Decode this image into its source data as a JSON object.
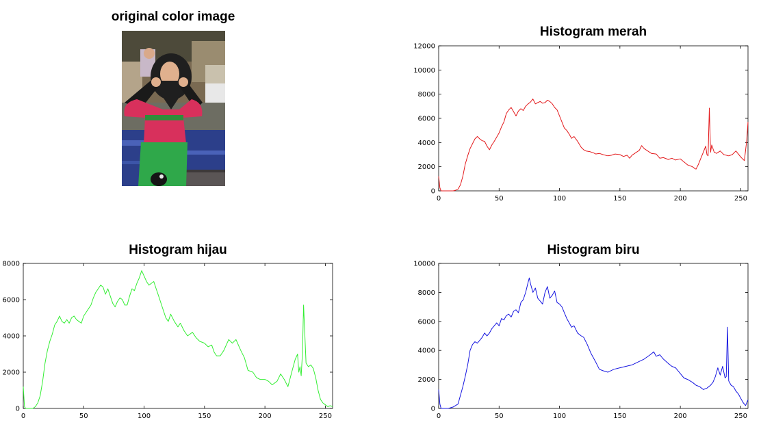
{
  "image_panel": {
    "title": "original color image"
  },
  "chart_data": [
    {
      "type": "line",
      "title": "Histogram merah",
      "xlabel": "",
      "ylabel": "",
      "xlim": [
        0,
        256
      ],
      "ylim": [
        0,
        12000
      ],
      "xticks": [
        0,
        50,
        100,
        150,
        200,
        250
      ],
      "yticks": [
        0,
        2000,
        4000,
        6000,
        8000,
        10000,
        12000
      ],
      "color": "#e31a1c",
      "grid": false,
      "series": [
        {
          "x": [
            0,
            1,
            2,
            4,
            8,
            12,
            14,
            16,
            18,
            20,
            22,
            24,
            26,
            28,
            30,
            32,
            34,
            36,
            38,
            40,
            42,
            44,
            46,
            48,
            50,
            52,
            54,
            56,
            58,
            60,
            62,
            64,
            66,
            68,
            70,
            72,
            74,
            76,
            78,
            80,
            82,
            84,
            86,
            88,
            90,
            92,
            94,
            96,
            98,
            100,
            102,
            104,
            106,
            108,
            110,
            112,
            115,
            118,
            120,
            122,
            125,
            128,
            130,
            133,
            136,
            140,
            143,
            146,
            150,
            153,
            156,
            158,
            160,
            163,
            166,
            168,
            170,
            173,
            176,
            180,
            183,
            186,
            190,
            193,
            196,
            200,
            203,
            206,
            210,
            212,
            213,
            215,
            217,
            219,
            221,
            222,
            223,
            224,
            225,
            226,
            228,
            230,
            233,
            236,
            240,
            243,
            246,
            250,
            253,
            255,
            256
          ],
          "y": [
            1200,
            250,
            0,
            0,
            0,
            0,
            50,
            150,
            500,
            1200,
            2200,
            2900,
            3500,
            3900,
            4300,
            4500,
            4300,
            4150,
            4100,
            3700,
            3400,
            3800,
            4100,
            4450,
            4800,
            5300,
            5700,
            6400,
            6700,
            6900,
            6550,
            6200,
            6600,
            6800,
            6650,
            7000,
            7200,
            7350,
            7600,
            7200,
            7300,
            7400,
            7250,
            7300,
            7500,
            7400,
            7200,
            6900,
            6700,
            6200,
            5700,
            5200,
            5000,
            4700,
            4350,
            4500,
            4100,
            3600,
            3400,
            3300,
            3250,
            3150,
            3050,
            3100,
            3000,
            2900,
            2950,
            3050,
            3000,
            2850,
            2950,
            2700,
            2950,
            3150,
            3350,
            3750,
            3500,
            3300,
            3100,
            3050,
            2700,
            2750,
            2600,
            2700,
            2550,
            2650,
            2400,
            2150,
            2000,
            1850,
            1800,
            2200,
            2700,
            3200,
            3700,
            3000,
            2900,
            6850,
            3200,
            3800,
            3200,
            3100,
            3300,
            3000,
            2900,
            3000,
            3300,
            2800,
            2500,
            4200,
            5700
          ]
        }
      ]
    },
    {
      "type": "line",
      "title": "Histogram hijau",
      "xlabel": "",
      "ylabel": "",
      "xlim": [
        0,
        256
      ],
      "ylim": [
        0,
        8000
      ],
      "xticks": [
        0,
        50,
        100,
        150,
        200,
        250
      ],
      "yticks": [
        0,
        2000,
        4000,
        6000,
        8000
      ],
      "color": "#33ee33",
      "grid": false,
      "series": [
        {
          "x": [
            0,
            1,
            2,
            4,
            8,
            10,
            12,
            14,
            16,
            18,
            20,
            22,
            24,
            26,
            28,
            30,
            32,
            34,
            36,
            38,
            40,
            42,
            44,
            46,
            48,
            50,
            52,
            54,
            56,
            58,
            60,
            62,
            64,
            66,
            68,
            70,
            72,
            74,
            76,
            78,
            80,
            82,
            84,
            86,
            88,
            90,
            92,
            94,
            96,
            98,
            100,
            102,
            104,
            106,
            108,
            110,
            112,
            115,
            118,
            120,
            122,
            125,
            128,
            130,
            133,
            136,
            140,
            143,
            146,
            150,
            153,
            156,
            158,
            160,
            163,
            166,
            168,
            170,
            173,
            176,
            180,
            183,
            186,
            190,
            193,
            196,
            200,
            203,
            206,
            210,
            213,
            216,
            219,
            221,
            223,
            225,
            227,
            228,
            229,
            230,
            231,
            232,
            234,
            236,
            238,
            240,
            242,
            244,
            246,
            248,
            250,
            252,
            254,
            256
          ],
          "y": [
            1200,
            100,
            0,
            0,
            0,
            100,
            300,
            700,
            1500,
            2500,
            3200,
            3700,
            4100,
            4600,
            4800,
            5100,
            4800,
            4700,
            4900,
            4700,
            5000,
            5100,
            4900,
            4800,
            4700,
            5100,
            5300,
            5500,
            5700,
            6100,
            6400,
            6600,
            6800,
            6700,
            6300,
            6600,
            6200,
            5800,
            5600,
            5900,
            6100,
            6000,
            5700,
            5700,
            6200,
            6600,
            6500,
            6900,
            7200,
            7600,
            7300,
            7000,
            6800,
            6900,
            7000,
            6600,
            6200,
            5600,
            5000,
            4800,
            5200,
            4800,
            4500,
            4700,
            4300,
            4000,
            4200,
            3900,
            3700,
            3600,
            3400,
            3500,
            3100,
            2900,
            2900,
            3200,
            3500,
            3800,
            3600,
            3800,
            3200,
            2800,
            2100,
            2000,
            1700,
            1600,
            1600,
            1500,
            1300,
            1500,
            1900,
            1600,
            1200,
            1700,
            2200,
            2700,
            3000,
            2000,
            2300,
            1800,
            3000,
            5700,
            2500,
            2300,
            2400,
            2200,
            1700,
            1000,
            500,
            300,
            200,
            100,
            150,
            100
          ]
        }
      ]
    },
    {
      "type": "line",
      "title": "Histogram biru",
      "xlabel": "",
      "ylabel": "",
      "xlim": [
        0,
        256
      ],
      "ylim": [
        0,
        10000
      ],
      "xticks": [
        0,
        50,
        100,
        150,
        200,
        250
      ],
      "yticks": [
        0,
        2000,
        4000,
        6000,
        8000,
        10000
      ],
      "color": "#1515e0",
      "grid": false,
      "series": [
        {
          "x": [
            0,
            1,
            2,
            4,
            8,
            12,
            16,
            18,
            20,
            22,
            24,
            26,
            28,
            30,
            32,
            34,
            36,
            38,
            40,
            42,
            44,
            46,
            48,
            50,
            52,
            54,
            56,
            58,
            60,
            62,
            64,
            66,
            68,
            70,
            72,
            74,
            75,
            76,
            78,
            80,
            82,
            84,
            86,
            88,
            90,
            92,
            94,
            96,
            98,
            100,
            102,
            104,
            106,
            108,
            110,
            112,
            115,
            118,
            120,
            123,
            126,
            130,
            133,
            136,
            140,
            145,
            150,
            155,
            160,
            165,
            170,
            175,
            178,
            180,
            183,
            186,
            190,
            193,
            196,
            200,
            203,
            206,
            210,
            213,
            216,
            219,
            222,
            225,
            227,
            229,
            231,
            233,
            235,
            237,
            238,
            239,
            240,
            242,
            244,
            246,
            248,
            250,
            252,
            254,
            256
          ],
          "y": [
            1300,
            300,
            0,
            0,
            0,
            100,
            300,
            900,
            1500,
            2200,
            3000,
            4000,
            4400,
            4600,
            4500,
            4700,
            4900,
            5200,
            5000,
            5200,
            5500,
            5700,
            5900,
            5700,
            6200,
            6100,
            6400,
            6500,
            6300,
            6700,
            6800,
            6600,
            7300,
            7500,
            8000,
            8700,
            9000,
            8600,
            8000,
            8300,
            7600,
            7400,
            7200,
            8000,
            8400,
            7600,
            7800,
            8100,
            7300,
            7200,
            7000,
            6600,
            6200,
            5900,
            5600,
            5700,
            5200,
            5000,
            4900,
            4400,
            3800,
            3200,
            2700,
            2600,
            2500,
            2700,
            2800,
            2900,
            3000,
            3200,
            3400,
            3700,
            3900,
            3600,
            3700,
            3400,
            3100,
            2900,
            2800,
            2400,
            2100,
            2000,
            1800,
            1600,
            1500,
            1300,
            1400,
            1600,
            1800,
            2200,
            2800,
            2300,
            2900,
            2100,
            2200,
            5600,
            1900,
            1600,
            1500,
            1200,
            1000,
            700,
            400,
            200,
            600
          ]
        }
      ]
    }
  ]
}
